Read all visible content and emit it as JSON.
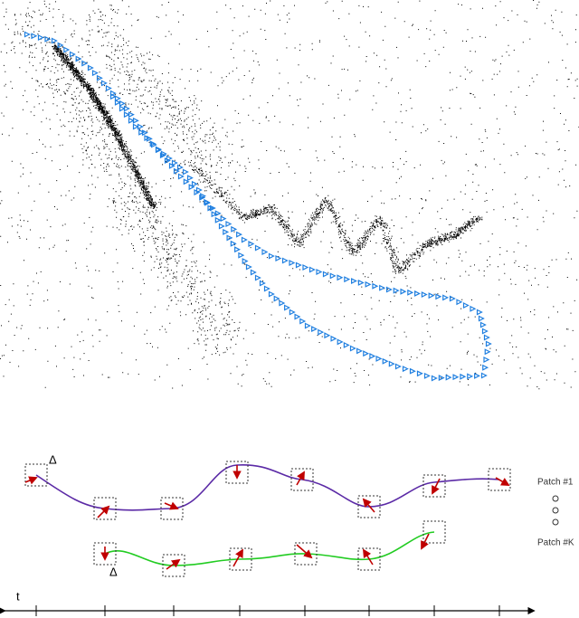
{
  "labels": {
    "delta_top": "Δ",
    "delta_bottom": "Δ",
    "patch_first": "Patch #1",
    "patch_last": "Patch #K",
    "time_axis": "t"
  }
}
